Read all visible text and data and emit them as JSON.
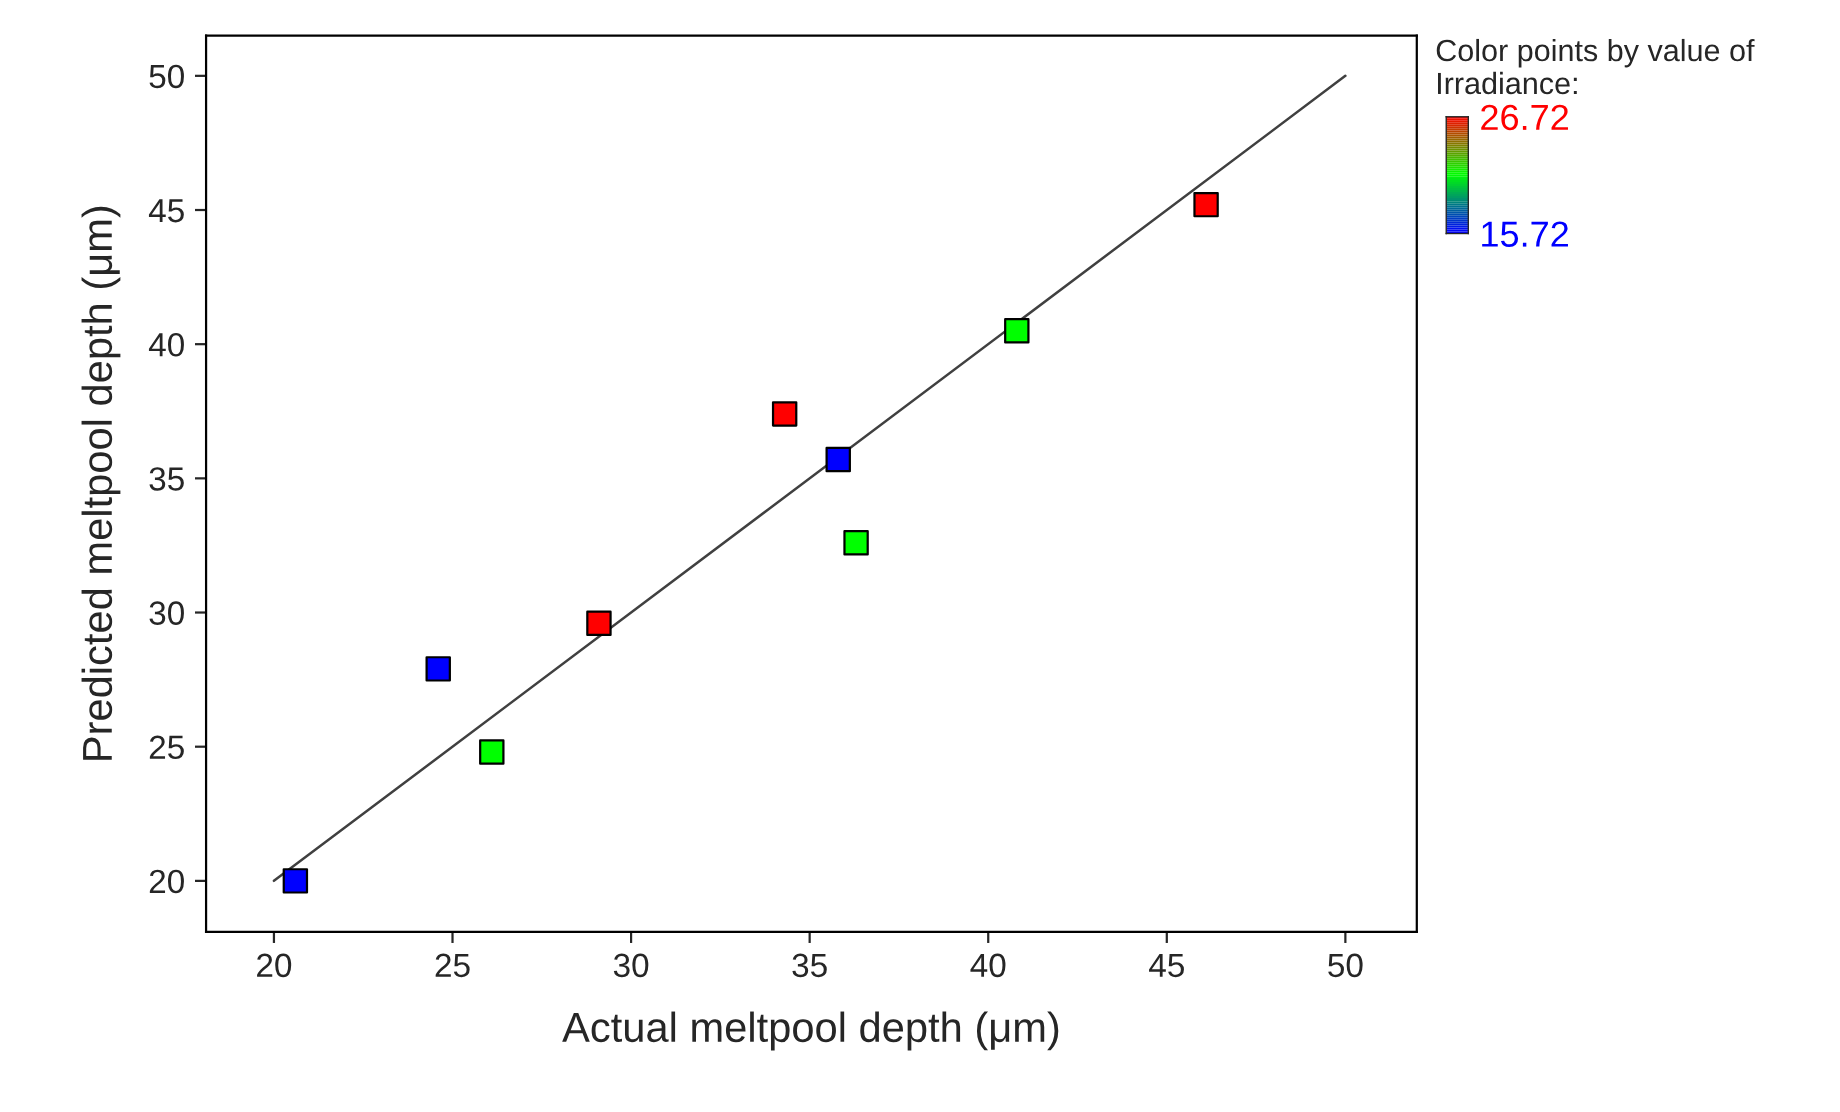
{
  "chart_data": {
    "type": "scatter",
    "xlabel": "Actual meltpool depth (μm)",
    "ylabel": "Predicted meltpool depth (μm)",
    "clabel": "Color points by value of Irradiance:",
    "series": [
      {
        "x": [
          20.6,
          24.6,
          26.1,
          29.1,
          34.3,
          35.8,
          36.3,
          40.8,
          46.1
        ],
        "values": [
          20.0,
          27.9,
          24.8,
          29.6,
          37.4,
          35.7,
          32.6,
          40.5,
          45.2
        ],
        "colors": [
          "#0000ff",
          "#0000ff",
          "#00ff00",
          "#ff0000",
          "#ff0000",
          "#0000ff",
          "#00ff00",
          "#00ff00",
          "#ff0000"
        ],
        "marker": "square"
      },
      {
        "type": "line",
        "x": [
          20,
          50
        ],
        "values": [
          20,
          50
        ],
        "color": "#404040",
        "line_style": "solid"
      }
    ],
    "clim": [
      15.72,
      26.72
    ],
    "cticks": [
      26.72,
      15.72
    ],
    "xlim": [
      18.1,
      52.0
    ],
    "ylim": [
      18.1,
      51.5
    ],
    "xticks": [
      20,
      25,
      30,
      35,
      40,
      45,
      50
    ],
    "yticks": [
      20,
      25,
      30,
      35,
      40,
      45,
      50
    ],
    "grid": false,
    "legend": false
  }
}
